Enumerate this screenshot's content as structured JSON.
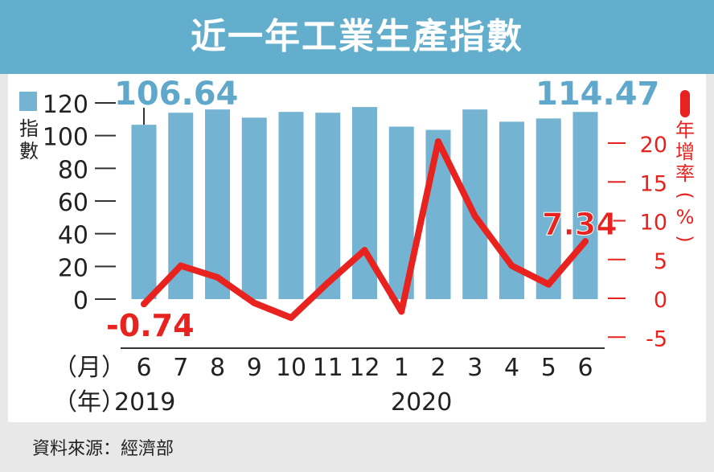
{
  "title": "近一年工業生產指數",
  "source": "資料來源：經濟部",
  "colors": {
    "header": "#64aecd",
    "bar": "#74b3d1",
    "line": "#e8231f",
    "bar_label": "#5fa8cc"
  },
  "chart_data": {
    "type": "bar+line",
    "categories": [
      "6",
      "7",
      "8",
      "9",
      "10",
      "11",
      "12",
      "1",
      "2",
      "3",
      "4",
      "5",
      "6"
    ],
    "x_axis_label": "（月）",
    "year_label": "（年）",
    "years": [
      {
        "label": "2019",
        "start_index": 0
      },
      {
        "label": "2020",
        "start_index": 7
      }
    ],
    "series": [
      {
        "name": "指數",
        "type": "bar",
        "axis": "left",
        "values": [
          106.64,
          114,
          116,
          111,
          114.5,
          114,
          117.5,
          105.5,
          103.5,
          116,
          108.5,
          110.5,
          114.47
        ]
      },
      {
        "name": "年增率（%）",
        "type": "line",
        "axis": "right",
        "values": [
          -0.74,
          4.2,
          2.7,
          -0.6,
          -2.5,
          2.0,
          6.2,
          -1.7,
          20.2,
          10.6,
          4.2,
          1.8,
          7.34
        ]
      }
    ],
    "left_axis": {
      "label": "指數",
      "ticks": [
        0,
        20,
        40,
        60,
        80,
        100,
        120
      ],
      "range": [
        0,
        120
      ]
    },
    "right_axis": {
      "label": "年增率（%）",
      "ticks": [
        -5,
        0,
        5,
        10,
        15,
        20
      ],
      "range": [
        -5,
        25
      ]
    },
    "annotations": [
      {
        "series": 0,
        "index": 0,
        "text": "106.64"
      },
      {
        "series": 0,
        "index": 12,
        "text": "114.47"
      },
      {
        "series": 1,
        "index": 0,
        "text": "-0.74"
      },
      {
        "series": 1,
        "index": 12,
        "text": "7.34"
      }
    ]
  }
}
